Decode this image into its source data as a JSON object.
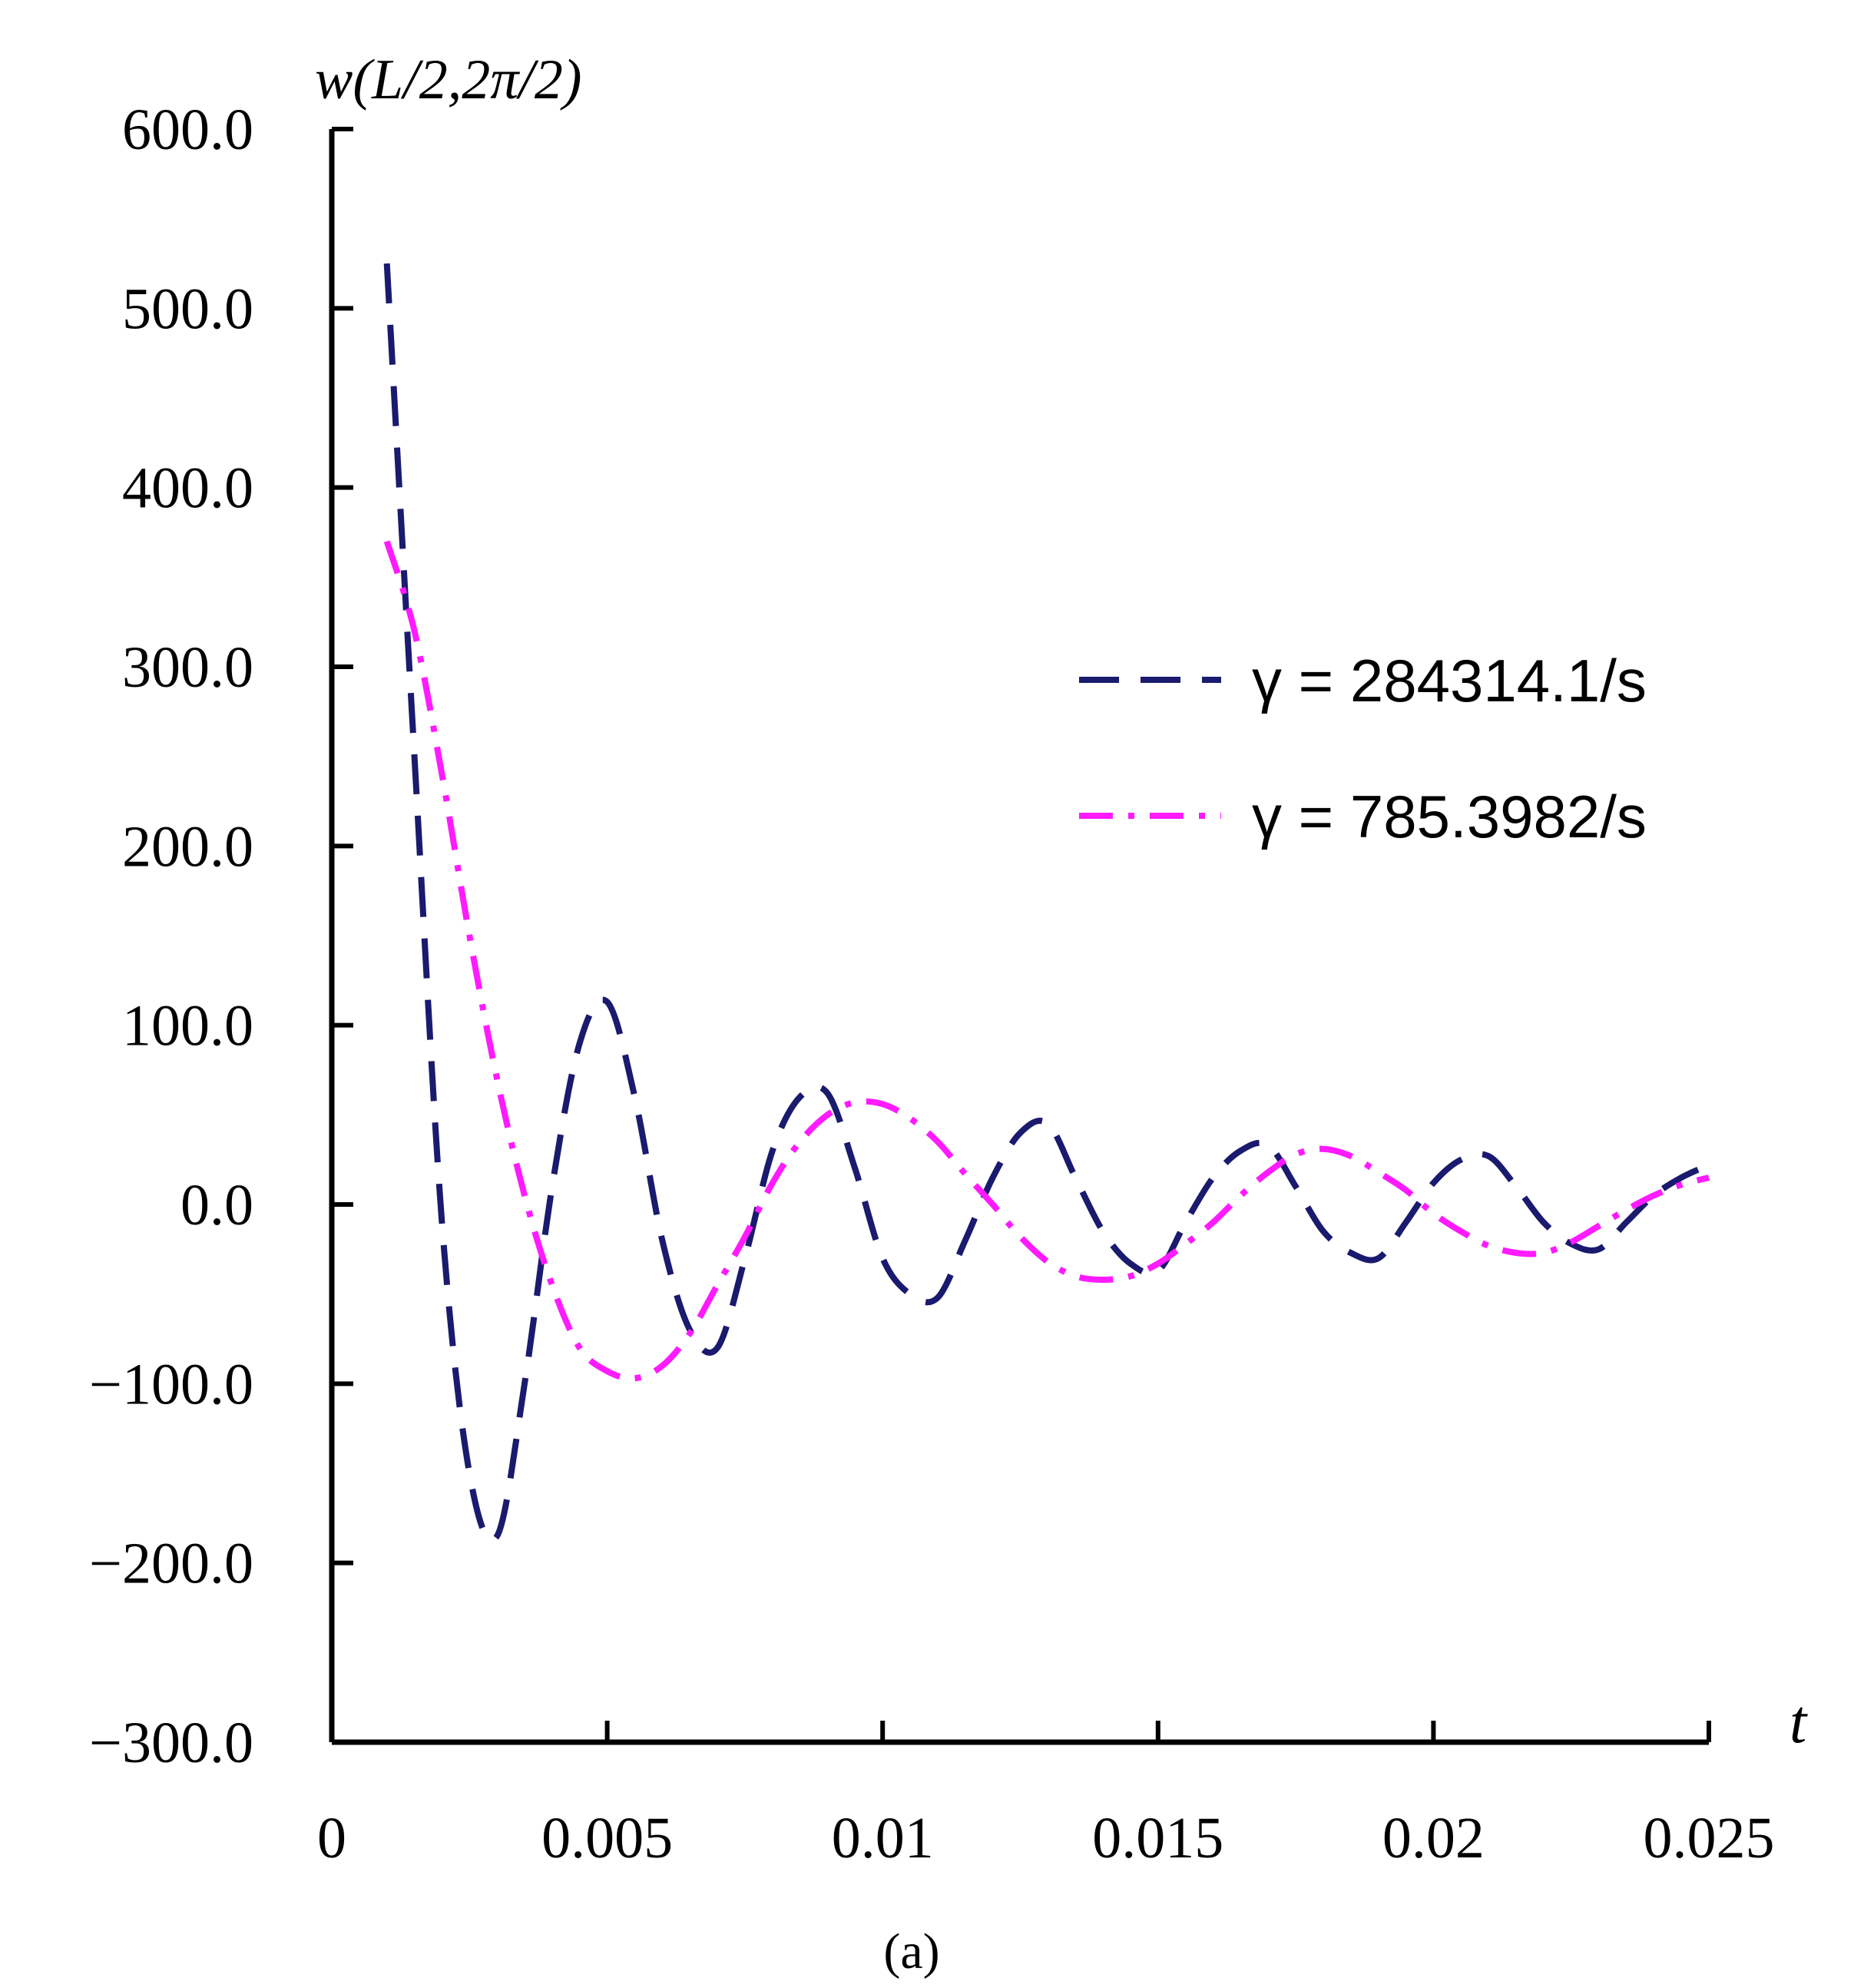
{
  "chart_data": {
    "type": "line",
    "title": "",
    "ylabel": "w(L/2,2π/2)",
    "xlabel": "t",
    "caption": "(a)",
    "xlim": [
      0,
      0.025
    ],
    "ylim": [
      -300,
      600
    ],
    "x_ticks": [
      {
        "value": 0,
        "label": "0"
      },
      {
        "value": 0.005,
        "label": "0.005"
      },
      {
        "value": 0.01,
        "label": "0.01"
      },
      {
        "value": 0.015,
        "label": "0.015"
      },
      {
        "value": 0.02,
        "label": "0.02"
      },
      {
        "value": 0.025,
        "label": "0.025"
      }
    ],
    "y_ticks": [
      {
        "value": 600,
        "label": "600.0"
      },
      {
        "value": 500,
        "label": "500.0"
      },
      {
        "value": 400,
        "label": "400.0"
      },
      {
        "value": 300,
        "label": "300.0"
      },
      {
        "value": 200,
        "label": "200.0"
      },
      {
        "value": 100,
        "label": "100.0"
      },
      {
        "value": 0,
        "label": "0.0"
      },
      {
        "value": -100,
        "label": "−100.0"
      },
      {
        "value": -200,
        "label": "−200.0"
      },
      {
        "value": -300,
        "label": "−300.0"
      }
    ],
    "grid": false,
    "legend_position": "right",
    "series": [
      {
        "name": "γ = 284314.1/s",
        "color": "#1a1a6e",
        "style": "dashed",
        "x": [
          0.001,
          0.0015,
          0.002,
          0.0025,
          0.003,
          0.0035,
          0.004,
          0.0045,
          0.005,
          0.0055,
          0.006,
          0.0065,
          0.007,
          0.0075,
          0.008,
          0.0085,
          0.009,
          0.0095,
          0.01,
          0.0105,
          0.011,
          0.0115,
          0.012,
          0.0125,
          0.013,
          0.0135,
          0.014,
          0.0145,
          0.015,
          0.0155,
          0.016,
          0.0165,
          0.017,
          0.0175,
          0.018,
          0.0185,
          0.019,
          0.0195,
          0.02,
          0.0205,
          0.021,
          0.0215,
          0.022,
          0.0225,
          0.023,
          0.0235,
          0.024,
          0.0245,
          0.025
        ],
        "y": [
          525,
          250,
          -10,
          -150,
          -185,
          -100,
          10,
          90,
          113,
          60,
          -20,
          -70,
          -80,
          -30,
          30,
          60,
          62,
          20,
          -30,
          -50,
          -52,
          -20,
          15,
          40,
          45,
          15,
          -15,
          -33,
          -37,
          -10,
          15,
          30,
          33,
          10,
          -15,
          -27,
          -30,
          -10,
          12,
          25,
          27,
          10,
          -10,
          -22,
          -25,
          -10,
          5,
          15,
          22
        ]
      },
      {
        "name": "γ = 785.3982/s",
        "color": "#ff1aff",
        "style": "dash-dot",
        "x": [
          0.001,
          0.0015,
          0.002,
          0.0025,
          0.003,
          0.0035,
          0.004,
          0.0045,
          0.005,
          0.0055,
          0.006,
          0.0065,
          0.007,
          0.0075,
          0.008,
          0.0085,
          0.009,
          0.0095,
          0.01,
          0.0105,
          0.011,
          0.0115,
          0.012,
          0.0125,
          0.013,
          0.0135,
          0.014,
          0.0145,
          0.015,
          0.0155,
          0.016,
          0.0165,
          0.017,
          0.0175,
          0.018,
          0.0185,
          0.019,
          0.0195,
          0.02,
          0.0205,
          0.021,
          0.0215,
          0.022,
          0.0225,
          0.023,
          0.0235,
          0.024,
          0.0245,
          0.025
        ],
        "y": [
          370,
          320,
          240,
          150,
          70,
          5,
          -45,
          -80,
          -93,
          -97,
          -90,
          -72,
          -45,
          -18,
          12,
          35,
          50,
          57,
          56,
          48,
          35,
          17,
          0,
          -18,
          -32,
          -40,
          -42,
          -40,
          -33,
          -22,
          -10,
          5,
          18,
          28,
          31,
          27,
          18,
          8,
          -5,
          -15,
          -23,
          -27,
          -27,
          -21,
          -12,
          -3,
          5,
          11,
          15
        ]
      }
    ]
  }
}
